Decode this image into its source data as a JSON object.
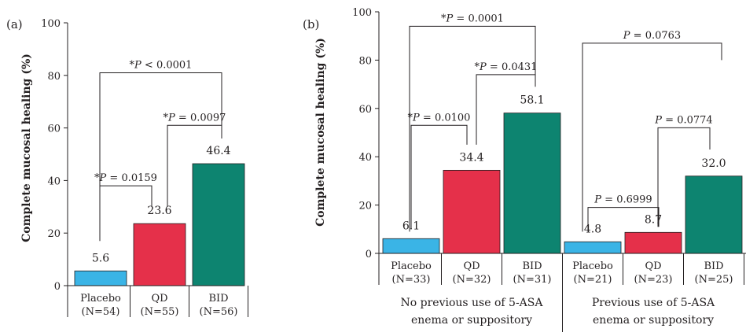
{
  "chart_data": [
    {
      "type": "bar",
      "panel_label": "(a)",
      "ylabel": "Complete mucosal healing (%)",
      "ylim": [
        0,
        100
      ],
      "yticks": [
        0,
        20,
        40,
        60,
        80,
        100
      ],
      "categories": [
        {
          "name": "Placebo",
          "n": "(N=54)"
        },
        {
          "name": "QD",
          "n": "(N=55)"
        },
        {
          "name": "BID",
          "n": "(N=56)"
        }
      ],
      "values": [
        5.6,
        23.6,
        46.4
      ],
      "value_labels": [
        "5.6",
        "23.6",
        "46.4"
      ],
      "colors": [
        "#3ab4e6",
        "#e5304a",
        "#0d8470"
      ],
      "comparisons": [
        {
          "from": 0,
          "to": 1,
          "star": "*",
          "label": "P = 0.0159"
        },
        {
          "from": 1,
          "to": 2,
          "star": "*",
          "label": "P = 0.0097"
        },
        {
          "from": 0,
          "to": 2,
          "star": "*",
          "label": "P < 0.0001"
        }
      ]
    },
    {
      "type": "bar",
      "panel_label": "(b)",
      "ylabel": "Complete mucosal healing (%)",
      "ylim": [
        0,
        100
      ],
      "yticks": [
        0,
        20,
        40,
        60,
        80,
        100
      ],
      "categories": [
        {
          "name": "Placebo",
          "n": "(N=33)"
        },
        {
          "name": "QD",
          "n": "(N=32)"
        },
        {
          "name": "BID",
          "n": "(N=31)"
        },
        {
          "name": "Placebo",
          "n": "(N=21)"
        },
        {
          "name": "QD",
          "n": "(N=23)"
        },
        {
          "name": "BID",
          "n": "(N=25)"
        }
      ],
      "values": [
        6.1,
        34.4,
        58.1,
        4.8,
        8.7,
        32.0
      ],
      "value_labels": [
        "6.1",
        "34.4",
        "58.1",
        "4.8",
        "8.7",
        "32.0"
      ],
      "colors": [
        "#3ab4e6",
        "#e5304a",
        "#0d8470",
        "#3ab4e6",
        "#e5304a",
        "#0d8470"
      ],
      "groups": [
        {
          "line1": "No previous use of 5-ASA",
          "line2": "enema or suppository",
          "members": [
            0,
            1,
            2
          ]
        },
        {
          "line1": "Previous use of 5-ASA",
          "line2": "enema or suppository",
          "members": [
            3,
            4,
            5
          ]
        }
      ],
      "comparisons": [
        {
          "from": 0,
          "to": 1,
          "star": "*",
          "label": "P = 0.0100"
        },
        {
          "from": 1,
          "to": 2,
          "star": "*",
          "label": "P = 0.0431"
        },
        {
          "from": 0,
          "to": 2,
          "star": "*",
          "label": "P = 0.0001"
        },
        {
          "from": 3,
          "to": 4,
          "star": "",
          "label": "P = 0.6999"
        },
        {
          "from": 4,
          "to": 5,
          "star": "",
          "label": "P = 0.0774"
        },
        {
          "from": 3,
          "to": 5,
          "star": "",
          "label": "P = 0.0763"
        }
      ]
    }
  ]
}
